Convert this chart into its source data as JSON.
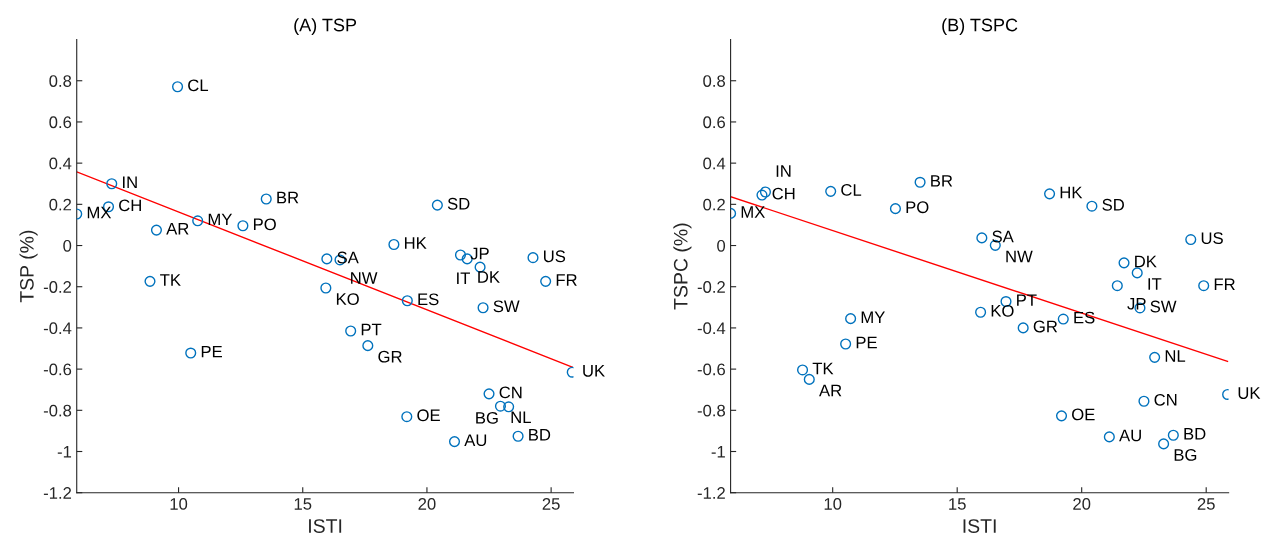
{
  "chart_data": [
    {
      "type": "scatter",
      "title": "(A) TSP",
      "xlabel": "ISTI",
      "ylabel": "TSP (%)",
      "xlim": [
        5.9,
        25.9
      ],
      "ylim": [
        -1.2,
        1
      ],
      "xticks": [
        10,
        15,
        20,
        25
      ],
      "yticks": [
        -1.2,
        -1,
        -0.8,
        -0.6,
        -0.4,
        -0.2,
        0,
        0.2,
        0.4,
        0.6,
        0.8
      ],
      "grid": false,
      "series": [
        {
          "marker": "circle",
          "color": "#0072bd",
          "x": [
            9.96,
            7.31,
            7.18,
            5.9,
            9.11,
            10.77,
            12.59,
            13.53,
            8.85,
            20.42,
            18.67,
            15.97,
            16.5,
            15.93,
            19.21,
            16.93,
            17.62,
            21.35,
            21.62,
            22.14,
            24.27,
            24.78,
            22.26,
            25.85,
            10.49,
            19.19,
            21.11,
            22.5,
            22.96,
            23.29,
            23.67
          ],
          "values": [
            0.771,
            0.3,
            0.188,
            0.153,
            0.075,
            0.12,
            0.096,
            0.226,
            -0.174,
            0.196,
            0.005,
            -0.065,
            -0.07,
            -0.206,
            -0.268,
            -0.415,
            -0.486,
            -0.046,
            -0.065,
            -0.105,
            -0.059,
            -0.174,
            -0.302,
            -0.615,
            -0.522,
            -0.831,
            -0.952,
            -0.72,
            -0.78,
            -0.783,
            -0.926
          ]
        },
        {
          "type": "line",
          "marker": "none",
          "color": "#ff0000",
          "x": [
            5.9,
            25.85
          ],
          "values": [
            0.358,
            -0.59
          ]
        }
      ],
      "annotations": [
        {
          "text": "CL",
          "x": 9.96,
          "y": 0.771
        },
        {
          "text": "IN",
          "x": 7.31,
          "y": 0.3
        },
        {
          "text": "CH",
          "x": 7.18,
          "y": 0.188
        },
        {
          "text": "MX",
          "x": 5.9,
          "y": 0.153
        },
        {
          "text": "AR",
          "x": 9.11,
          "y": 0.075
        },
        {
          "text": "MY",
          "x": 10.77,
          "y": 0.12
        },
        {
          "text": "PO",
          "x": 12.59,
          "y": 0.096
        },
        {
          "text": "BR",
          "x": 13.53,
          "y": 0.226
        },
        {
          "text": "TK",
          "x": 8.85,
          "y": -0.174
        },
        {
          "text": "SD",
          "x": 20.42,
          "y": 0.196
        },
        {
          "text": "HK",
          "x": 18.67,
          "y": 0.005
        },
        {
          "text": "SA",
          "x": 15.97,
          "y": -0.065
        },
        {
          "text": "NW",
          "x": 16.5,
          "y": -0.07
        },
        {
          "text": "KO",
          "x": 15.93,
          "y": -0.206
        },
        {
          "text": "ES",
          "x": 19.21,
          "y": -0.268
        },
        {
          "text": "PT",
          "x": 16.93,
          "y": -0.415
        },
        {
          "text": "GR",
          "x": 17.62,
          "y": -0.486
        },
        {
          "text": "JP",
          "x": 21.35,
          "y": -0.046
        },
        {
          "text": "DK",
          "x": 21.62,
          "y": -0.065
        },
        {
          "text": "IT",
          "x": 22.14,
          "y": -0.105
        },
        {
          "text": "US",
          "x": 24.27,
          "y": -0.059
        },
        {
          "text": "FR",
          "x": 24.78,
          "y": -0.174
        },
        {
          "text": "SW",
          "x": 22.26,
          "y": -0.302
        },
        {
          "text": "UK",
          "x": 25.85,
          "y": -0.615
        },
        {
          "text": "PE",
          "x": 10.49,
          "y": -0.522
        },
        {
          "text": "OE",
          "x": 19.19,
          "y": -0.831
        },
        {
          "text": "AU",
          "x": 21.11,
          "y": -0.952
        },
        {
          "text": "CN",
          "x": 22.5,
          "y": -0.72
        },
        {
          "text": "NL",
          "x": 22.96,
          "y": -0.78
        },
        {
          "text": "BG",
          "x": 23.29,
          "y": -0.783
        },
        {
          "text": "BD",
          "x": 23.67,
          "y": -0.926
        }
      ]
    },
    {
      "type": "scatter",
      "title": "(B) TSPC",
      "xlabel": "ISTI",
      "ylabel": "TSPC (%)",
      "xlim": [
        5.9,
        25.9
      ],
      "ylim": [
        -1.2,
        1
      ],
      "xticks": [
        10,
        15,
        20,
        25
      ],
      "yticks": [
        -1.2,
        -1,
        -0.8,
        -0.6,
        -0.4,
        -0.2,
        0,
        0.2,
        0.4,
        0.6,
        0.8
      ],
      "grid": false,
      "series": [
        {
          "marker": "circle",
          "color": "#0072bd",
          "x": [
            5.9,
            7.16,
            7.3,
            9.92,
            13.51,
            12.52,
            10.72,
            10.52,
            8.79,
            9.06,
            18.71,
            20.41,
            15.99,
            16.53,
            24.38,
            21.7,
            22.23,
            21.43,
            24.9,
            22.34,
            16.96,
            15.94,
            17.65,
            19.26,
            22.93,
            25.86,
            22.5,
            19.19,
            21.11,
            23.68,
            23.29
          ],
          "values": [
            0.156,
            0.245,
            0.26,
            0.263,
            0.307,
            0.179,
            -0.355,
            -0.478,
            -0.604,
            -0.65,
            0.251,
            0.191,
            0.037,
            0.001,
            0.029,
            -0.084,
            -0.133,
            -0.195,
            -0.195,
            -0.303,
            -0.272,
            -0.324,
            -0.4,
            -0.357,
            -0.543,
            -0.723,
            -0.756,
            -0.827,
            -0.929,
            -0.921,
            -0.963
          ]
        },
        {
          "type": "line",
          "marker": "none",
          "color": "#ff0000",
          "x": [
            5.9,
            25.86
          ],
          "values": [
            0.237,
            -0.563
          ]
        }
      ],
      "annotations": [
        {
          "text": "MX",
          "x": 5.9,
          "y": 0.156
        },
        {
          "text": "CH",
          "x": 7.16,
          "y": 0.245
        },
        {
          "text": "IN",
          "x": 7.3,
          "y": 0.26
        },
        {
          "text": "CL",
          "x": 9.92,
          "y": 0.263
        },
        {
          "text": "BR",
          "x": 13.51,
          "y": 0.307
        },
        {
          "text": "PO",
          "x": 12.52,
          "y": 0.179
        },
        {
          "text": "MY",
          "x": 10.72,
          "y": -0.355
        },
        {
          "text": "PE",
          "x": 10.52,
          "y": -0.478
        },
        {
          "text": "TK",
          "x": 8.79,
          "y": -0.604
        },
        {
          "text": "AR",
          "x": 9.06,
          "y": -0.65
        },
        {
          "text": "HK",
          "x": 18.71,
          "y": 0.251
        },
        {
          "text": "SD",
          "x": 20.41,
          "y": 0.191
        },
        {
          "text": "SA",
          "x": 15.99,
          "y": 0.037
        },
        {
          "text": "NW",
          "x": 16.53,
          "y": 0.001
        },
        {
          "text": "US",
          "x": 24.38,
          "y": 0.029
        },
        {
          "text": "DK",
          "x": 21.7,
          "y": -0.084
        },
        {
          "text": "IT",
          "x": 22.23,
          "y": -0.133
        },
        {
          "text": "JP",
          "x": 21.43,
          "y": -0.195
        },
        {
          "text": "FR",
          "x": 24.9,
          "y": -0.195
        },
        {
          "text": "SW",
          "x": 22.34,
          "y": -0.303
        },
        {
          "text": "PT",
          "x": 16.96,
          "y": -0.272
        },
        {
          "text": "KO",
          "x": 15.94,
          "y": -0.324
        },
        {
          "text": "GR",
          "x": 17.65,
          "y": -0.4
        },
        {
          "text": "ES",
          "x": 19.26,
          "y": -0.357
        },
        {
          "text": "NL",
          "x": 22.93,
          "y": -0.543
        },
        {
          "text": "UK",
          "x": 25.86,
          "y": -0.723
        },
        {
          "text": "CN",
          "x": 22.5,
          "y": -0.756
        },
        {
          "text": "OE",
          "x": 19.19,
          "y": -0.827
        },
        {
          "text": "AU",
          "x": 21.11,
          "y": -0.929
        },
        {
          "text": "BD",
          "x": 23.68,
          "y": -0.921
        },
        {
          "text": "BG",
          "x": 23.29,
          "y": -0.963
        }
      ]
    }
  ]
}
